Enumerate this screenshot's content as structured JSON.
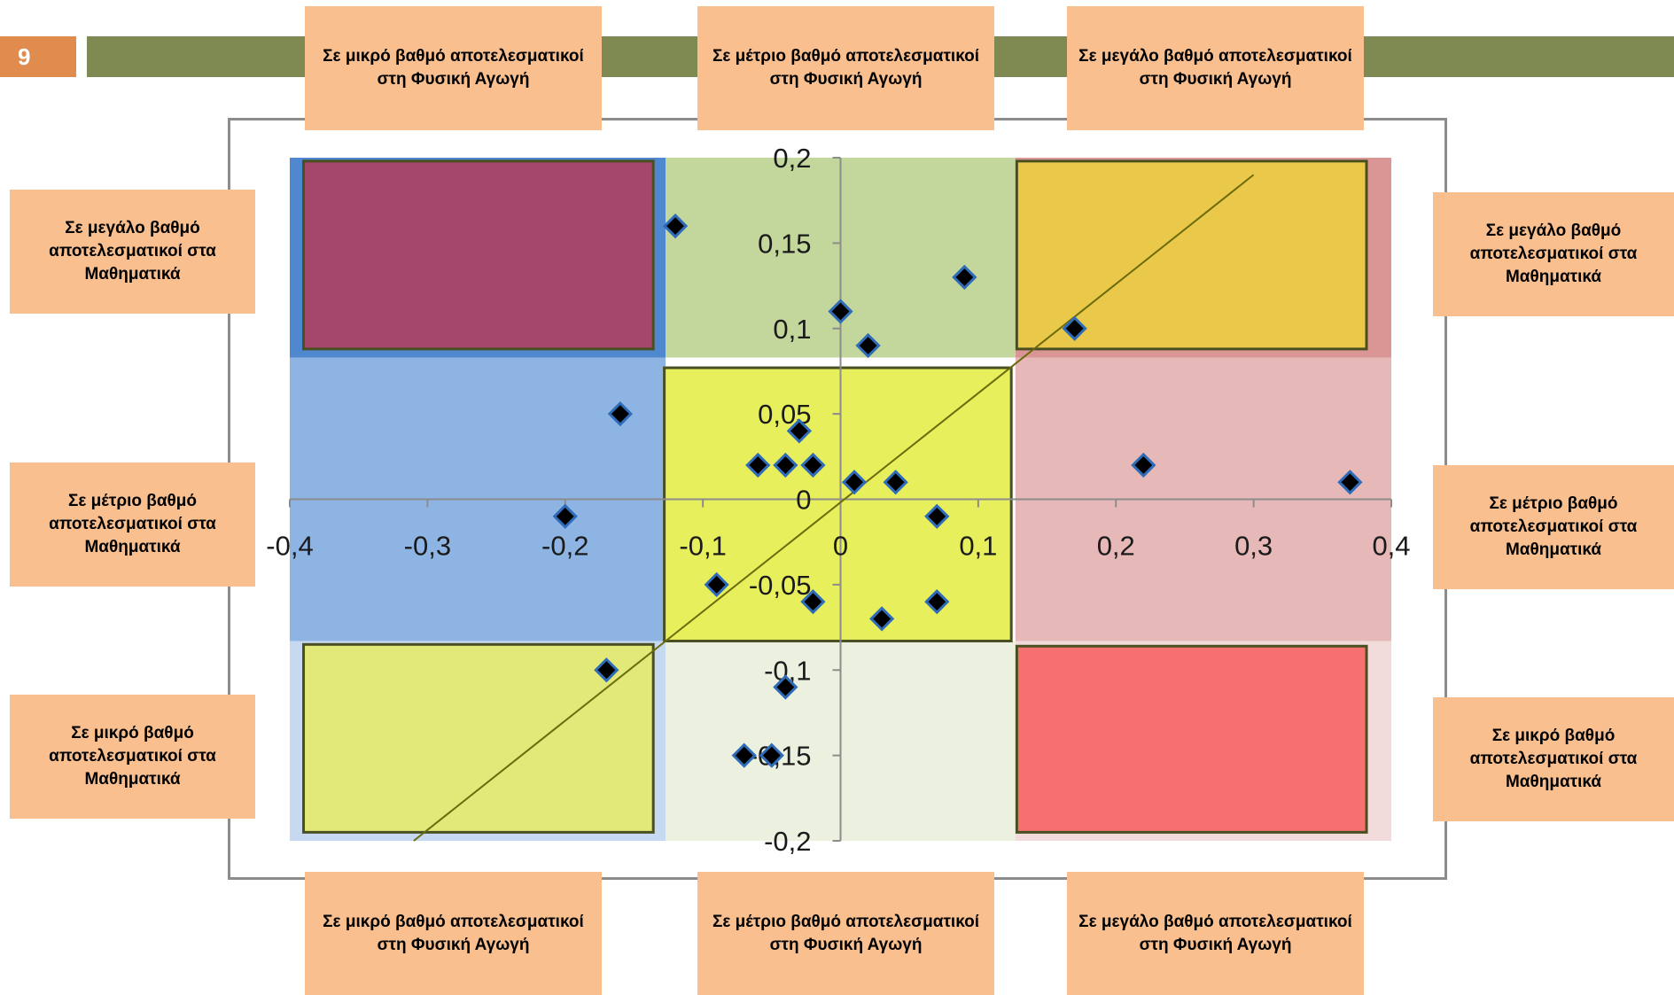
{
  "slide": {
    "number": "9"
  },
  "labels": {
    "top": [
      "Σε μικρό βαθμό αποτελεσματικοί στη Φυσική Αγωγή",
      "Σε μέτριο βαθμό αποτελεσματικοί στη Φυσική Αγωγή",
      "Σε μεγάλο βαθμό αποτελεσματικοί στη Φυσική Αγωγή"
    ],
    "bottom": [
      "Σε μικρό βαθμό αποτελεσματικοί στη Φυσική Αγωγή",
      "Σε μέτριο βαθμό αποτελεσματικοί στη Φυσική Αγωγή",
      "Σε μεγάλο βαθμό αποτελεσματικοί στη Φυσική Αγωγή"
    ],
    "left": [
      "Σε μεγάλο βαθμό αποτελεσματικοί στα Μαθηματικά",
      "Σε μέτριο βαθμό αποτελεσματικοί στα Μαθηματικά",
      "Σε μικρό βαθμό αποτελεσματικοί στα Μαθηματικά"
    ],
    "right": [
      "Σε μεγάλο βαθμό αποτελεσματικοί στα Μαθηματικά",
      "Σε μέτριο βαθμό αποτελεσματικοί στα Μαθηματικά",
      "Σε μικρό βαθμό αποτελεσματικοί στα Μαθηματικά"
    ]
  },
  "chart_data": {
    "type": "scatter",
    "xlim": [
      -0.4,
      0.4
    ],
    "ylim": [
      -0.2,
      0.2
    ],
    "x_ticks": [
      "-0,4",
      "-0,3",
      "-0,2",
      "-0,1",
      "0",
      "0,1",
      "0,2",
      "0,3",
      "0,4"
    ],
    "y_ticks": [
      "0,2",
      "0,15",
      "0,1",
      "0,05",
      "0",
      "-0,05",
      "-0,1",
      "-0,15",
      "-0,2"
    ],
    "points": [
      {
        "x": -0.12,
        "y": 0.16
      },
      {
        "x": 0.09,
        "y": 0.13
      },
      {
        "x": 0.0,
        "y": 0.11
      },
      {
        "x": 0.02,
        "y": 0.09
      },
      {
        "x": 0.17,
        "y": 0.1
      },
      {
        "x": -0.16,
        "y": 0.05
      },
      {
        "x": -0.03,
        "y": 0.04
      },
      {
        "x": -0.06,
        "y": 0.02
      },
      {
        "x": -0.04,
        "y": 0.02
      },
      {
        "x": -0.02,
        "y": 0.02
      },
      {
        "x": 0.01,
        "y": 0.01
      },
      {
        "x": 0.04,
        "y": 0.01
      },
      {
        "x": 0.22,
        "y": 0.02
      },
      {
        "x": 0.37,
        "y": 0.01
      },
      {
        "x": -0.2,
        "y": -0.01
      },
      {
        "x": 0.07,
        "y": -0.01
      },
      {
        "x": -0.09,
        "y": -0.05
      },
      {
        "x": -0.02,
        "y": -0.06
      },
      {
        "x": 0.03,
        "y": -0.07
      },
      {
        "x": 0.07,
        "y": -0.06
      },
      {
        "x": -0.17,
        "y": -0.1
      },
      {
        "x": -0.04,
        "y": -0.11
      },
      {
        "x": -0.07,
        "y": -0.15
      },
      {
        "x": -0.05,
        "y": -0.15
      }
    ],
    "trendline": {
      "x1": -0.31,
      "y1": -0.2,
      "x2": 0.3,
      "y2": 0.19
    },
    "zones": {
      "x_bounds": [
        -0.4,
        -0.127,
        0.127,
        0.4
      ],
      "y_bounds": [
        -0.2,
        -0.083,
        0.083,
        0.2
      ],
      "colors": [
        [
          "#4f88cf",
          "#c3d69b",
          "#d99694"
        ],
        [
          "#8eb4e3",
          "#ffffff",
          "#e6b9b8"
        ],
        [
          "#c6d9f0",
          "#ebf1de",
          "#f2dcdb"
        ]
      ]
    },
    "highlight_boxes": [
      {
        "x0": -0.39,
        "x1": -0.136,
        "y0": 0.088,
        "y1": 0.198,
        "color": "#a5476a"
      },
      {
        "x0": 0.128,
        "x1": 0.382,
        "y0": 0.088,
        "y1": 0.198,
        "color": "#eac94a"
      },
      {
        "x0": -0.128,
        "x1": 0.124,
        "y0": -0.083,
        "y1": 0.077,
        "color": "#e8ef5c"
      },
      {
        "x0": -0.39,
        "x1": -0.136,
        "y0": -0.195,
        "y1": -0.085,
        "color": "#e2e978"
      },
      {
        "x0": 0.128,
        "x1": 0.382,
        "y0": -0.195,
        "y1": -0.086,
        "color": "#f67070"
      }
    ],
    "colors": {
      "marker_fill": "#000000",
      "marker_stroke": "#2e6bb8",
      "trendline": "#6b6b0c",
      "axis": "#8c8c8c",
      "box_border": "#4a4f22"
    }
  }
}
